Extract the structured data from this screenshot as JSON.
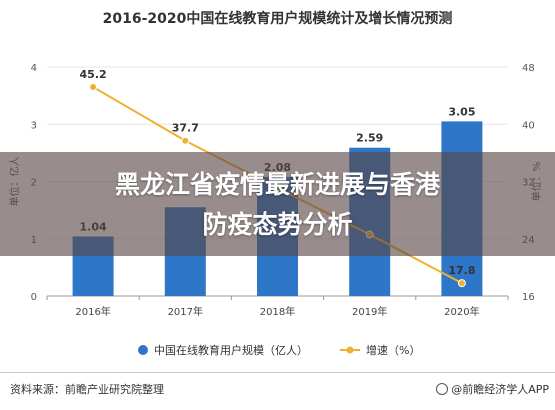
{
  "title": "2016-2020中国在线教育用户规模统计及增长情况预测",
  "headline_line1": "黑龙江省疫情最新进展与香港",
  "headline_line2": "防疫态势分析",
  "source": "资料来源：前瞻产业研究院整理",
  "brand": "@前瞻经济学人APP",
  "colors": {
    "bar": "#2e77c8",
    "line": "#f0b030",
    "grid": "#e6e6e6"
  },
  "chart_data": {
    "type": "bar",
    "categories": [
      "2016年",
      "2017年",
      "2018年",
      "2019年",
      "2020年"
    ],
    "series": [
      {
        "name": "中国在线教育用户规模（亿人）",
        "type": "bar",
        "axis": "left",
        "values": [
          1.04,
          1.55,
          2.08,
          2.59,
          3.05
        ],
        "labels": [
          "1.04",
          "",
          "2.08",
          "2.59",
          "3.05"
        ]
      },
      {
        "name": "增速（%）",
        "type": "line",
        "axis": "right",
        "values": [
          45.2,
          37.7,
          31.1,
          24.6,
          17.8
        ],
        "labels": [
          "45.2",
          "37.7",
          "",
          "",
          "17.8"
        ]
      }
    ],
    "ylim_left": [
      0,
      4
    ],
    "yticks_left": [
      "0",
      "1",
      "2",
      "3",
      "4"
    ],
    "ylabel_left": "单位：亿人",
    "ylim_right": [
      16,
      48
    ],
    "yticks_right": [
      "16",
      "24",
      "32",
      "40",
      "48"
    ],
    "ylabel_right": "单位：%",
    "legend_position": "bottom",
    "grid": true
  }
}
